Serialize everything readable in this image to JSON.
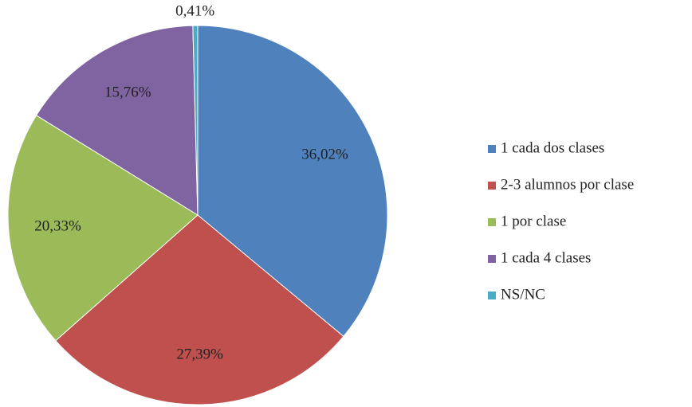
{
  "chart_data": {
    "type": "pie",
    "categories": [
      "1 cada dos clases",
      "2-3 alumnos por clase",
      "1 por clase",
      "1 cada 4 clases",
      "NS/NC"
    ],
    "values": [
      36.02,
      27.39,
      20.33,
      15.76,
      0.41
    ],
    "value_labels": [
      "36,02%",
      "27,39%",
      "20,33%",
      "15,76%",
      "0,41%"
    ],
    "colors": [
      "#4f81bd",
      "#c0504d",
      "#9bbb59",
      "#8064a2",
      "#4bacc6"
    ],
    "legend": "right"
  }
}
